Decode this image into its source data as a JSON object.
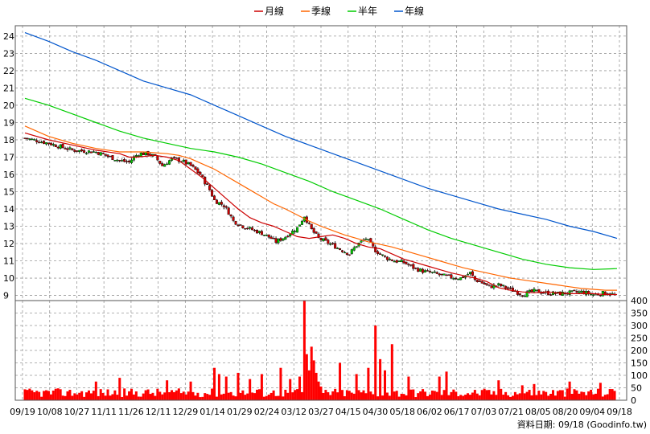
{
  "legend": [
    {
      "name": "月線",
      "color": "#cc0000"
    },
    {
      "name": "季線",
      "color": "#ff6600"
    },
    {
      "name": "半年",
      "color": "#00cc00"
    },
    {
      "name": "年線",
      "color": "#0055cc"
    }
  ],
  "footer_text": "資料日期: 09/18  (Goodinfo.tw)",
  "colors": {
    "up": "#00cc00",
    "down": "#cc0000",
    "volume": "#ff0000",
    "grid": "#999999",
    "axis_text": "#000000"
  },
  "chart_data": [
    {
      "type": "line",
      "ylim": [
        8.7,
        24.6
      ],
      "y_ticks": [
        9,
        10,
        11,
        12,
        13,
        14,
        15,
        16,
        17,
        18,
        19,
        20,
        21,
        22,
        23,
        24
      ],
      "x_ticks": [
        "09/19",
        "10/08",
        "10/27",
        "11/11",
        "11/26",
        "12/11",
        "12/29",
        "01/14",
        "01/29",
        "02/24",
        "03/12",
        "03/27",
        "04/15",
        "04/30",
        "05/18",
        "06/02",
        "06/17",
        "07/03",
        "07/21",
        "08/05",
        "08/20",
        "09/04",
        "09/18"
      ],
      "grid": true,
      "series": [
        {
          "name": "月線",
          "key": "ma20",
          "x": [
            0,
            10,
            20,
            30,
            40,
            44,
            47,
            55,
            60,
            65,
            70,
            75,
            80,
            85,
            90,
            95,
            100,
            105,
            110,
            115,
            120,
            125,
            130,
            135,
            140,
            145,
            150,
            155,
            160,
            165,
            170,
            175,
            180,
            185,
            190,
            195,
            200,
            205,
            210,
            215,
            220,
            225,
            230,
            235,
            240,
            245,
            250
          ],
          "values": [
            18.4,
            18.0,
            17.7,
            17.4,
            17.2,
            17.0,
            17.0,
            17.1,
            17.0,
            16.8,
            16.3,
            15.8,
            15.2,
            14.6,
            14.0,
            13.5,
            13.2,
            13.0,
            12.7,
            12.4,
            12.3,
            12.4,
            12.5,
            12.3,
            12.0,
            11.8,
            11.7,
            11.4,
            11.1,
            10.9,
            10.7,
            10.5,
            10.3,
            10.15,
            10.0,
            9.8,
            9.45,
            9.3,
            9.2,
            9.15,
            9.2,
            9.15,
            9.1,
            9.1,
            9.1,
            9.05,
            9.05
          ]
        },
        {
          "name": "季線",
          "key": "ma60",
          "x": [
            0,
            10,
            20,
            30,
            40,
            50,
            60,
            65,
            70,
            75,
            80,
            85,
            90,
            95,
            100,
            105,
            110,
            115,
            120,
            125,
            130,
            135,
            140,
            145,
            150,
            155,
            160,
            165,
            170,
            175,
            180,
            185,
            190,
            195,
            200,
            205,
            210,
            215,
            220,
            225,
            230,
            235,
            240,
            245,
            250
          ],
          "values": [
            18.8,
            18.2,
            17.8,
            17.5,
            17.3,
            17.3,
            17.2,
            17.1,
            16.9,
            16.6,
            16.3,
            15.9,
            15.5,
            15.1,
            14.7,
            14.3,
            14.0,
            13.65,
            13.3,
            13.0,
            12.75,
            12.5,
            12.3,
            12.1,
            11.95,
            11.8,
            11.6,
            11.4,
            11.2,
            11.0,
            10.8,
            10.6,
            10.45,
            10.3,
            10.15,
            10.0,
            9.9,
            9.8,
            9.7,
            9.6,
            9.5,
            9.4,
            9.35,
            9.3,
            9.3
          ]
        },
        {
          "name": "半年",
          "key": "ma120",
          "x": [
            0,
            10,
            20,
            30,
            40,
            50,
            60,
            70,
            80,
            90,
            100,
            110,
            120,
            130,
            140,
            150,
            160,
            170,
            180,
            190,
            200,
            210,
            220,
            230,
            240,
            250
          ],
          "values": [
            20.4,
            20.0,
            19.5,
            19.0,
            18.5,
            18.1,
            17.8,
            17.5,
            17.3,
            17.0,
            16.6,
            16.1,
            15.6,
            15.0,
            14.5,
            14.0,
            13.4,
            12.8,
            12.3,
            11.9,
            11.5,
            11.1,
            10.8,
            10.6,
            10.5,
            10.55
          ]
        },
        {
          "name": "年線",
          "key": "ma240",
          "x": [
            0,
            10,
            20,
            30,
            40,
            50,
            60,
            70,
            80,
            90,
            100,
            110,
            120,
            130,
            140,
            150,
            160,
            170,
            180,
            190,
            200,
            210,
            220,
            230,
            240,
            250
          ],
          "values": [
            24.2,
            23.7,
            23.1,
            22.6,
            22.0,
            21.4,
            21.0,
            20.6,
            20.0,
            19.4,
            18.8,
            18.2,
            17.7,
            17.2,
            16.7,
            16.2,
            15.7,
            15.2,
            14.8,
            14.4,
            14.0,
            13.7,
            13.4,
            13.0,
            12.7,
            12.3
          ]
        }
      ],
      "price_path": {
        "x": [
          0,
          10,
          20,
          30,
          40,
          44,
          46,
          48,
          52,
          55,
          58,
          62,
          66,
          70,
          74,
          78,
          80,
          84,
          86,
          88,
          92,
          96,
          100,
          104,
          106,
          110,
          115,
          118,
          121,
          124,
          130,
          134,
          137,
          140,
          144,
          148,
          152,
          156,
          160,
          164,
          168,
          172,
          176,
          180,
          184,
          188,
          190,
          192,
          196,
          200,
          205,
          210,
          215,
          220,
          225,
          230,
          235,
          240,
          245,
          250
        ],
        "close": [
          18.1,
          17.8,
          17.4,
          17.3,
          16.8,
          16.7,
          17.0,
          17.2,
          17.2,
          17.0,
          16.5,
          16.9,
          16.8,
          16.5,
          16.0,
          15.1,
          14.5,
          14.2,
          13.8,
          13.3,
          13.0,
          12.8,
          12.6,
          12.3,
          12.1,
          12.4,
          12.9,
          13.6,
          12.8,
          12.3,
          11.9,
          11.6,
          11.4,
          11.9,
          12.3,
          11.6,
          11.2,
          11.0,
          10.9,
          10.6,
          10.4,
          10.3,
          10.15,
          10.05,
          10.0,
          10.3,
          9.9,
          9.8,
          9.5,
          9.6,
          9.35,
          9.05,
          9.25,
          9.15,
          9.1,
          9.15,
          9.2,
          9.05,
          9.15,
          9.0
        ]
      },
      "total_sessions": 250
    },
    {
      "type": "bar",
      "ylim": [
        0,
        400
      ],
      "y_ticks": [
        0,
        50,
        100,
        150,
        200,
        250,
        300,
        350,
        400
      ],
      "grid": true,
      "spikes": {
        "x": [
          118,
          119,
          120,
          121,
          122,
          123,
          124,
          125,
          116,
          112,
          108,
          100,
          133,
          140,
          145,
          148,
          150,
          152,
          155,
          162,
          80,
          82,
          85,
          90,
          95,
          230,
          243,
          247,
          40,
          30,
          60,
          70,
          175,
          178,
          200,
          210,
          215
        ],
        "values": [
          400,
          185,
          120,
          215,
          160,
          110,
          75,
          55,
          95,
          85,
          130,
          105,
          150,
          105,
          130,
          300,
          165,
          120,
          225,
          95,
          130,
          105,
          95,
          110,
          85,
          75,
          70,
          45,
          90,
          75,
          80,
          75,
          95,
          115,
          80,
          60,
          65
        ]
      },
      "base_volume": 30
    }
  ]
}
